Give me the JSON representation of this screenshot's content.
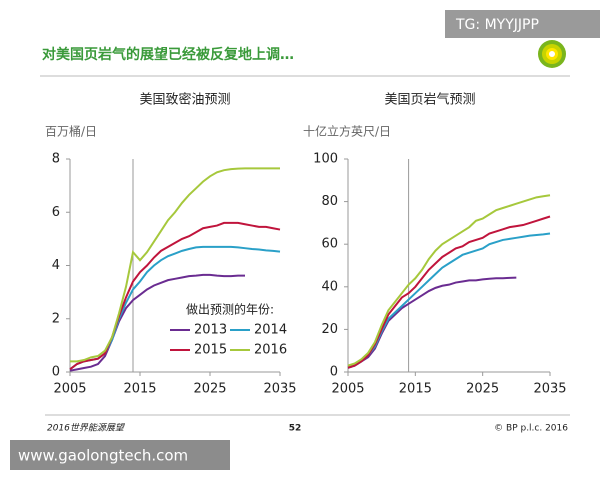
{
  "slide": {
    "title": "对美国页岩气的展望已经被反复地上调…",
    "footer_left": "2016世界能源展望",
    "page_number": "52",
    "footer_right": "© BP p.l.c. 2016"
  },
  "watermarks": [
    "TG: MYYJJPP",
    "www.gaolongtech.com"
  ],
  "chart_data": [
    {
      "type": "line",
      "title": "美国致密油预测",
      "y_label": "百万桶/日",
      "x": [
        2005,
        2006,
        2007,
        2008,
        2009,
        2010,
        2011,
        2012,
        2013,
        2014,
        2015,
        2016,
        2017,
        2018,
        2019,
        2020,
        2021,
        2022,
        2023,
        2024,
        2025,
        2026,
        2027,
        2028,
        2029,
        2030,
        2031,
        2032,
        2033,
        2034,
        2035
      ],
      "xlim": [
        2005,
        2035
      ],
      "xticks": [
        2005,
        2015,
        2025,
        2035
      ],
      "ylim": [
        0,
        8
      ],
      "yticks": [
        0,
        2,
        4,
        6,
        8
      ],
      "vline": 2014,
      "legend": "lower-right",
      "legend_title": "做出预测的年份:",
      "series": [
        {
          "name": "2013",
          "color": "#6a2c91",
          "values": [
            0.05,
            0.1,
            0.15,
            0.2,
            0.3,
            0.6,
            1.2,
            1.9,
            2.4,
            2.7,
            2.9,
            3.1,
            3.25,
            3.35,
            3.45,
            3.5,
            3.55,
            3.6,
            3.62,
            3.65,
            3.65,
            3.62,
            3.6,
            3.6,
            3.62,
            3.62,
            null,
            null,
            null,
            null,
            null
          ]
        },
        {
          "name": "2014",
          "color": "#2aa0c8",
          "values": [
            0.1,
            0.3,
            0.4,
            0.45,
            0.5,
            0.7,
            1.2,
            2.0,
            2.6,
            3.1,
            3.4,
            3.75,
            4.0,
            4.2,
            4.35,
            4.45,
            4.55,
            4.62,
            4.68,
            4.7,
            4.7,
            4.7,
            4.7,
            4.7,
            4.68,
            4.65,
            4.62,
            4.6,
            4.57,
            4.55,
            4.52
          ]
        },
        {
          "name": "2015",
          "color": "#c0143c",
          "values": [
            0.1,
            0.3,
            0.4,
            0.45,
            0.5,
            0.7,
            1.3,
            2.1,
            2.8,
            3.4,
            3.75,
            4.0,
            4.3,
            4.55,
            4.7,
            4.85,
            5.0,
            5.1,
            5.25,
            5.4,
            5.45,
            5.5,
            5.6,
            5.6,
            5.6,
            5.55,
            5.5,
            5.45,
            5.45,
            5.4,
            5.35
          ]
        },
        {
          "name": "2016",
          "color": "#a6c83c",
          "values": [
            0.4,
            0.4,
            0.45,
            0.55,
            0.6,
            0.8,
            1.3,
            2.2,
            3.2,
            4.5,
            4.2,
            4.5,
            4.9,
            5.3,
            5.7,
            6.0,
            6.35,
            6.65,
            6.9,
            7.15,
            7.35,
            7.5,
            7.58,
            7.62,
            7.64,
            7.65,
            7.65,
            7.65,
            7.65,
            7.65,
            7.65
          ]
        }
      ]
    },
    {
      "type": "line",
      "title": "美国页岩气预测",
      "y_label": "十亿立方英尺/日",
      "x": [
        2005,
        2006,
        2007,
        2008,
        2009,
        2010,
        2011,
        2012,
        2013,
        2014,
        2015,
        2016,
        2017,
        2018,
        2019,
        2020,
        2021,
        2022,
        2023,
        2024,
        2025,
        2026,
        2027,
        2028,
        2029,
        2030,
        2031,
        2032,
        2033,
        2034,
        2035
      ],
      "xlim": [
        2005,
        2035
      ],
      "xticks": [
        2005,
        2015,
        2025,
        2035
      ],
      "ylim": [
        0,
        100
      ],
      "yticks": [
        0,
        20,
        40,
        60,
        80,
        100
      ],
      "vline": 2014,
      "series": [
        {
          "color": "#6a2c91",
          "values": [
            2,
            3,
            5,
            7,
            11,
            18,
            24,
            27,
            30,
            32,
            34,
            36,
            38,
            39.5,
            40.5,
            41,
            42,
            42.5,
            43,
            43,
            43.5,
            43.8,
            44,
            44,
            44.2,
            44.3,
            null,
            null,
            null,
            null,
            null
          ]
        },
        {
          "color": "#2aa0c8",
          "values": [
            2,
            3,
            5,
            8,
            12,
            19,
            25,
            28,
            31,
            34,
            37,
            40,
            43,
            46,
            49,
            51,
            53,
            55,
            56,
            57,
            58,
            60,
            61,
            62,
            62.5,
            63,
            63.5,
            64,
            64.3,
            64.6,
            65
          ]
        },
        {
          "color": "#c0143c",
          "values": [
            2,
            3,
            5,
            8,
            13,
            20,
            27,
            31,
            35,
            37,
            40,
            44,
            48,
            51,
            54,
            56,
            58,
            59,
            61,
            62,
            63,
            65,
            66,
            67,
            68,
            68.5,
            69,
            70,
            71,
            72,
            73
          ]
        },
        {
          "color": "#a6c83c",
          "values": [
            3,
            4,
            6,
            9,
            14,
            22,
            29,
            33,
            37,
            41,
            44,
            48,
            53,
            57,
            60,
            62,
            64,
            66,
            68,
            71,
            72,
            74,
            76,
            77,
            78,
            79,
            80,
            81,
            82,
            82.5,
            83
          ]
        }
      ]
    }
  ]
}
